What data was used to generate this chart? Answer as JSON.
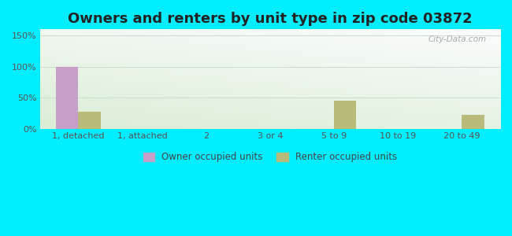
{
  "title": "Owners and renters by unit type in zip code 03872",
  "categories": [
    "1, detached",
    "1, attached",
    "2",
    "3 or 4",
    "5 to 9",
    "10 to 19",
    "20 to 49"
  ],
  "owner_values": [
    100,
    0,
    0,
    0,
    0,
    0,
    0
  ],
  "renter_values": [
    28,
    0,
    0,
    0,
    45,
    0,
    22
  ],
  "owner_color": "#c4a0c8",
  "renter_color": "#b8bb7a",
  "background_outer": "#00eeff",
  "ylim": [
    0,
    160
  ],
  "yticks": [
    0,
    50,
    100,
    150
  ],
  "ytick_labels": [
    "0%",
    "50%",
    "100%",
    "150%"
  ],
  "bar_width": 0.35,
  "title_fontsize": 13,
  "watermark": "City-Data.com"
}
